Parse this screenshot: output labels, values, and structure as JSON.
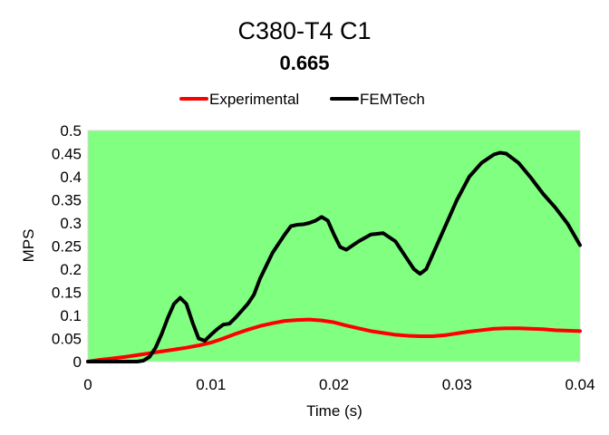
{
  "chart_data": {
    "type": "line",
    "title": "C380-T4 C1",
    "subtitle": "0.665",
    "xlabel": "Time (s)",
    "ylabel": "MPS",
    "xlim": [
      0,
      0.04
    ],
    "ylim": [
      0,
      0.5
    ],
    "x_ticks": [
      "0",
      "0.01",
      "0.02",
      "0.03",
      "0.04"
    ],
    "y_ticks": [
      "0",
      "0.05",
      "0.1",
      "0.15",
      "0.2",
      "0.25",
      "0.3",
      "0.35",
      "0.4",
      "0.45",
      "0.5"
    ],
    "grid": false,
    "legend": "top",
    "plot_background": "#80FF80",
    "series": [
      {
        "name": "Experimental",
        "color": "#FF0000",
        "x": [
          0,
          0.001,
          0.002,
          0.003,
          0.004,
          0.005,
          0.006,
          0.007,
          0.008,
          0.009,
          0.01,
          0.011,
          0.012,
          0.013,
          0.014,
          0.015,
          0.016,
          0.017,
          0.018,
          0.019,
          0.02,
          0.021,
          0.022,
          0.023,
          0.024,
          0.025,
          0.026,
          0.027,
          0.028,
          0.029,
          0.03,
          0.031,
          0.032,
          0.033,
          0.034,
          0.035,
          0.036,
          0.037,
          0.038,
          0.039,
          0.04
        ],
        "values": [
          0,
          0.004,
          0.007,
          0.01,
          0.014,
          0.018,
          0.022,
          0.026,
          0.03,
          0.035,
          0.041,
          0.05,
          0.06,
          0.069,
          0.077,
          0.083,
          0.088,
          0.09,
          0.091,
          0.089,
          0.085,
          0.078,
          0.072,
          0.066,
          0.062,
          0.058,
          0.056,
          0.055,
          0.055,
          0.057,
          0.061,
          0.065,
          0.068,
          0.071,
          0.072,
          0.072,
          0.071,
          0.07,
          0.068,
          0.067,
          0.066
        ]
      },
      {
        "name": "FEMTech",
        "color": "#000000",
        "x": [
          0,
          0.001,
          0.002,
          0.003,
          0.004,
          0.0045,
          0.005,
          0.0055,
          0.006,
          0.0065,
          0.007,
          0.0075,
          0.008,
          0.0085,
          0.009,
          0.0095,
          0.01,
          0.0105,
          0.011,
          0.0115,
          0.012,
          0.0125,
          0.013,
          0.0135,
          0.014,
          0.015,
          0.016,
          0.0165,
          0.017,
          0.0175,
          0.018,
          0.0185,
          0.019,
          0.0195,
          0.02,
          0.0205,
          0.021,
          0.022,
          0.023,
          0.024,
          0.025,
          0.026,
          0.0265,
          0.027,
          0.0275,
          0.028,
          0.029,
          0.03,
          0.031,
          0.032,
          0.033,
          0.0335,
          0.034,
          0.035,
          0.036,
          0.037,
          0.038,
          0.039,
          0.04
        ],
        "values": [
          0,
          0,
          0,
          0,
          0,
          0.002,
          0.01,
          0.03,
          0.06,
          0.095,
          0.125,
          0.138,
          0.125,
          0.085,
          0.05,
          0.045,
          0.058,
          0.07,
          0.08,
          0.082,
          0.095,
          0.11,
          0.125,
          0.145,
          0.18,
          0.235,
          0.275,
          0.293,
          0.296,
          0.297,
          0.3,
          0.305,
          0.313,
          0.305,
          0.275,
          0.248,
          0.242,
          0.26,
          0.275,
          0.278,
          0.26,
          0.22,
          0.2,
          0.19,
          0.2,
          0.23,
          0.29,
          0.35,
          0.4,
          0.43,
          0.448,
          0.452,
          0.45,
          0.43,
          0.398,
          0.363,
          0.333,
          0.298,
          0.252
        ]
      }
    ]
  }
}
